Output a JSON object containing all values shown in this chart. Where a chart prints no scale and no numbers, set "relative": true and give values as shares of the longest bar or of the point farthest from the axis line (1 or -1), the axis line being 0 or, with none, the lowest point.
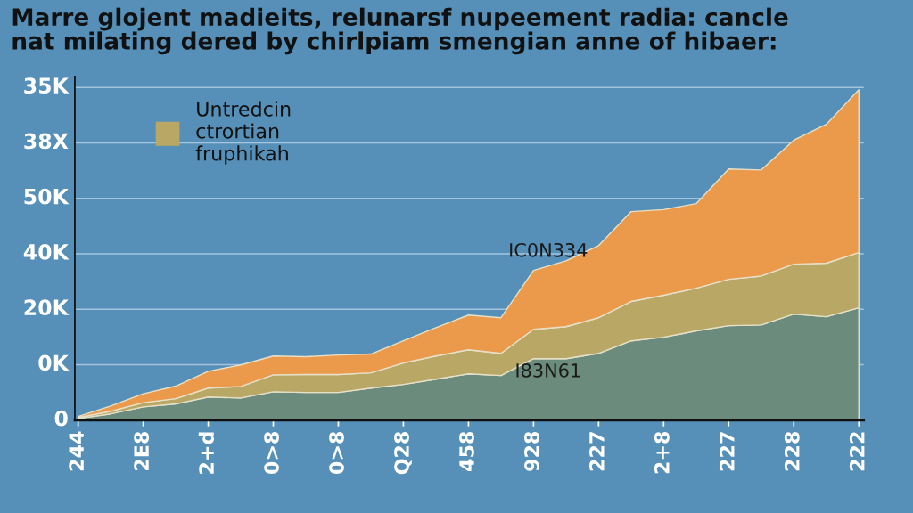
{
  "chart_data": {
    "type": "area",
    "stacked": true,
    "relative": true,
    "title": "Marre glojent madieits, relunarsf nupeement radia: cancle\nnat milating dered by chirlpiam smengian anne of hibaer:",
    "categories": [
      "244",
      null,
      "2E8",
      null,
      "2+d",
      null,
      "0>8",
      null,
      "0>8",
      null,
      "Q28",
      null,
      "458",
      null,
      "928",
      null,
      "227",
      null,
      "2+8",
      null,
      "227",
      null,
      "228",
      null,
      "222"
    ],
    "series": [
      {
        "color": "#6b8c7c",
        "values": [
          0.005,
          0.019,
          0.04,
          0.049,
          0.07,
          0.067,
          0.086,
          0.084,
          0.084,
          0.097,
          0.108,
          0.124,
          0.14,
          0.135,
          0.186,
          0.186,
          0.202,
          0.24,
          0.251,
          0.27,
          0.286,
          0.288,
          0.321,
          0.313,
          0.34
        ]
      },
      {
        "name": "Untredcin\nctrortian\nfruphikah",
        "color": "#b8a765",
        "values": [
          0.003,
          0.008,
          0.013,
          0.016,
          0.027,
          0.035,
          0.051,
          0.054,
          0.054,
          0.046,
          0.065,
          0.07,
          0.073,
          0.067,
          0.089,
          0.097,
          0.108,
          0.119,
          0.127,
          0.129,
          0.14,
          0.148,
          0.151,
          0.162,
          0.167
        ]
      },
      {
        "color": "#eb9a4c",
        "values": [
          0.003,
          0.016,
          0.027,
          0.038,
          0.051,
          0.065,
          0.057,
          0.054,
          0.059,
          0.057,
          0.067,
          0.086,
          0.105,
          0.108,
          0.178,
          0.199,
          0.218,
          0.272,
          0.259,
          0.256,
          0.334,
          0.321,
          0.375,
          0.42,
          0.493
        ]
      }
    ],
    "grid": "y",
    "legend": "top left",
    "annotations": [
      "0",
      "0K",
      "20K",
      "40K",
      "50K",
      "38X",
      "35K",
      "IC0N334",
      "I83N61"
    ]
  }
}
